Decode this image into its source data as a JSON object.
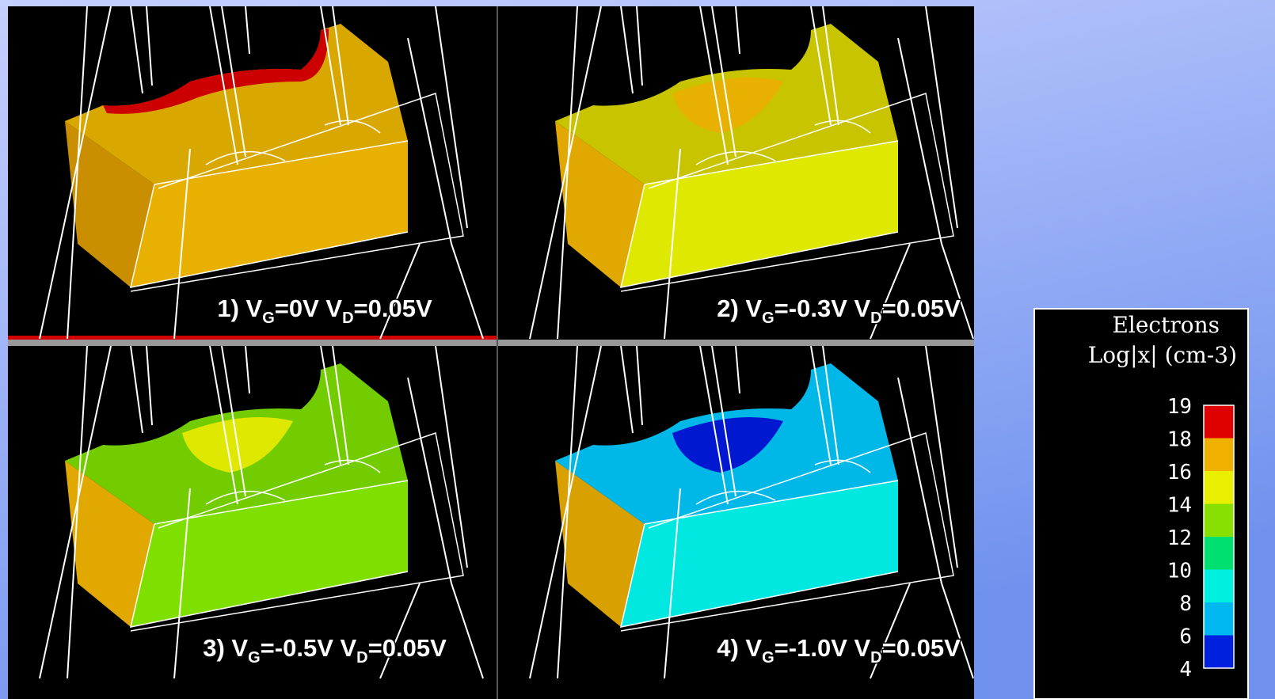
{
  "panels": [
    {
      "label": {
        "a": "1) V",
        "s1": "G",
        "b": "=0V V",
        "s2": "D",
        "c": "=0.05V"
      },
      "colors": [
        "#c98f00",
        "#e8b000",
        "#d9a800",
        "#cc0000"
      ]
    },
    {
      "label": {
        "a": "2) V",
        "s1": "G",
        "b": "=-0.3V V",
        "s2": "D",
        "c": "=0.05V"
      },
      "colors": [
        "#e0a800",
        "#dfe800",
        "#c8c400",
        "#e8b000"
      ]
    },
    {
      "label": {
        "a": "3) V",
        "s1": "G",
        "b": "=-0.5V V",
        "s2": "D",
        "c": "=0.05V"
      },
      "colors": [
        "#e0a800",
        "#7fe000",
        "#72cc00",
        "#dfe800"
      ]
    },
    {
      "label": {
        "a": "4) V",
        "s1": "G",
        "b": "=-1.0V V",
        "s2": "D",
        "c": "=0.05V"
      },
      "colors": [
        "#d8a000",
        "#00e8e0",
        "#00b8e8",
        "#0018d0"
      ]
    }
  ],
  "legend": {
    "title": "Electrons",
    "subtitle": "Log|x| (cm-3)",
    "ticks": [
      19,
      18,
      16,
      14,
      12,
      10,
      8,
      6,
      4
    ],
    "colors": [
      "#e00000",
      "#f0b000",
      "#e8f000",
      "#88e000",
      "#00e070",
      "#00f0e0",
      "#00b8f0",
      "#0020e0"
    ]
  }
}
